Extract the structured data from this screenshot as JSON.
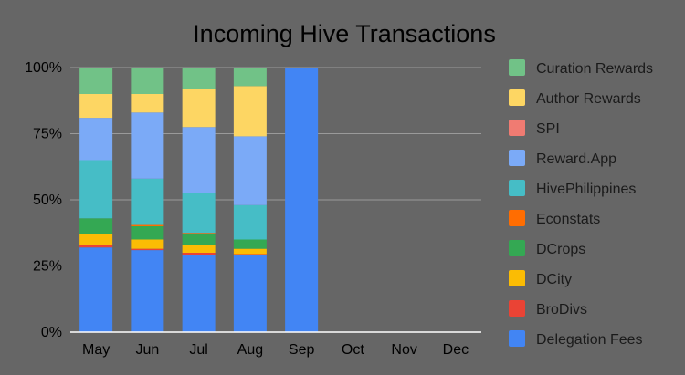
{
  "chart_data": {
    "type": "bar",
    "stacked": "percent",
    "title": "Incoming Hive Transactions",
    "xlabel": "",
    "ylabel": "",
    "categories": [
      "May",
      "Jun",
      "Jul",
      "Aug",
      "Sep",
      "Oct",
      "Nov",
      "Dec"
    ],
    "y_ticks": [
      "0%",
      "25%",
      "50%",
      "75%",
      "100%"
    ],
    "ylim": [
      0,
      100
    ],
    "grid": true,
    "legend_position": "right",
    "series": [
      {
        "name": "Delegation Fees",
        "color": "#4285f4",
        "values": [
          32,
          31,
          29,
          29,
          100,
          0,
          0,
          0
        ]
      },
      {
        "name": "BroDivs",
        "color": "#ea4335",
        "values": [
          1,
          0.5,
          1,
          0.5,
          0,
          0,
          0,
          0
        ]
      },
      {
        "name": "DCity",
        "color": "#fbbc04",
        "values": [
          4,
          3.5,
          3,
          2,
          0,
          0,
          0,
          0
        ]
      },
      {
        "name": "DCrops",
        "color": "#34a853",
        "values": [
          6,
          5,
          4,
          3.5,
          0,
          0,
          0,
          0
        ]
      },
      {
        "name": "Econstats",
        "color": "#ff6d01",
        "values": [
          0,
          0.5,
          0.5,
          0,
          0,
          0,
          0,
          0
        ]
      },
      {
        "name": "HivePhilippines",
        "color": "#46bdc6",
        "values": [
          22,
          17.5,
          15,
          13,
          0,
          0,
          0,
          0
        ]
      },
      {
        "name": "Reward.App",
        "color": "#7baaf7",
        "values": [
          16,
          25,
          25,
          26,
          0,
          0,
          0,
          0
        ]
      },
      {
        "name": "SPI",
        "color": "#f07b72",
        "values": [
          0,
          0,
          0,
          0,
          0,
          0,
          0,
          0
        ]
      },
      {
        "name": "Author Rewards",
        "color": "#fdd663",
        "values": [
          9,
          7,
          14.5,
          19,
          0,
          0,
          0,
          0
        ]
      },
      {
        "name": "Curation Rewards",
        "color": "#71c287",
        "values": [
          10,
          10,
          8,
          7,
          0,
          0,
          0,
          0
        ]
      }
    ]
  }
}
